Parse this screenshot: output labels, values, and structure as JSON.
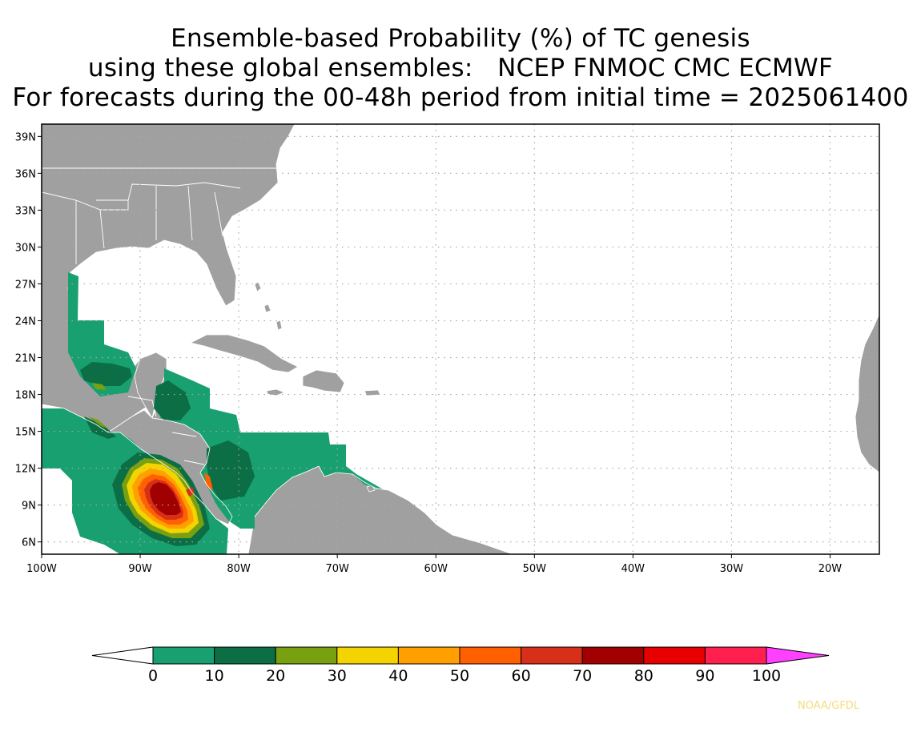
{
  "title_lines": [
    "Ensemble-based Probability (%) of TC genesis",
    "using these global ensembles:   NCEP FNMOC CMC ECMWF",
    "For forecasts during the 00-48h period from initial time = 2025061400"
  ],
  "map": {
    "lon_range": [
      -100,
      -15
    ],
    "lat_range": [
      5,
      40
    ],
    "lat_ticks": [
      {
        "value": 39,
        "label": "39N"
      },
      {
        "value": 36,
        "label": "36N"
      },
      {
        "value": 33,
        "label": "33N"
      },
      {
        "value": 30,
        "label": "30N"
      },
      {
        "value": 27,
        "label": "27N"
      },
      {
        "value": 24,
        "label": "24N"
      },
      {
        "value": 21,
        "label": "21N"
      },
      {
        "value": 18,
        "label": "18N"
      },
      {
        "value": 15,
        "label": "15N"
      },
      {
        "value": 12,
        "label": "12N"
      },
      {
        "value": 9,
        "label": "9N"
      },
      {
        "value": 6,
        "label": "6N"
      }
    ],
    "lon_ticks": [
      {
        "value": -100,
        "label": "100W"
      },
      {
        "value": -90,
        "label": "90W"
      },
      {
        "value": -80,
        "label": "80W"
      },
      {
        "value": -70,
        "label": "70W"
      },
      {
        "value": -60,
        "label": "60W"
      },
      {
        "value": -50,
        "label": "50W"
      },
      {
        "value": -40,
        "label": "40W"
      },
      {
        "value": -30,
        "label": "30W"
      },
      {
        "value": -20,
        "label": "20W"
      }
    ],
    "land_color": "#a0a0a0",
    "ocean_color": "#ffffff",
    "grid": "dotted"
  },
  "colorbar": {
    "levels": [
      "0",
      "10",
      "20",
      "30",
      "40",
      "50",
      "60",
      "70",
      "80",
      "90",
      "100"
    ],
    "colors": [
      "#18a070",
      "#0c6e44",
      "#78a010",
      "#f4d400",
      "#ffa000",
      "#ff6000",
      "#d83018",
      "#a00000",
      "#e80000",
      "#ff2050"
    ],
    "under_color": "#ffffff",
    "over_color": "#ff40ff"
  },
  "credit": "NOAA/GFDL"
}
